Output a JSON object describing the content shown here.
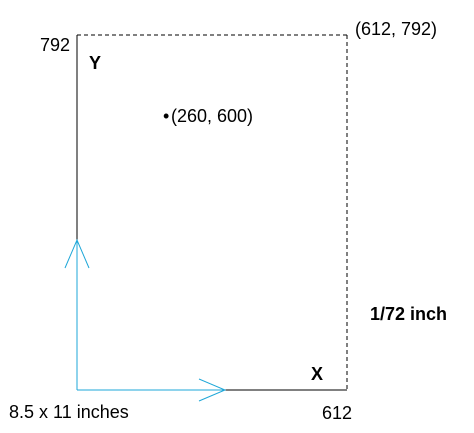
{
  "diagram": {
    "corner_top_right": "(612, 792)",
    "y_max_label": "792",
    "x_max_label": "612",
    "y_axis_label": "Y",
    "x_axis_label": "X",
    "point_bullet": "•",
    "point_label": "(260, 600)",
    "unit_label": "1/72 inch",
    "page_size_label": "8.5 x 11 inches"
  },
  "colors": {
    "axis": "#000000",
    "border_dashed": "#000000",
    "arrow": "#1ea7d8",
    "unit_text": "#1ea7d8"
  }
}
